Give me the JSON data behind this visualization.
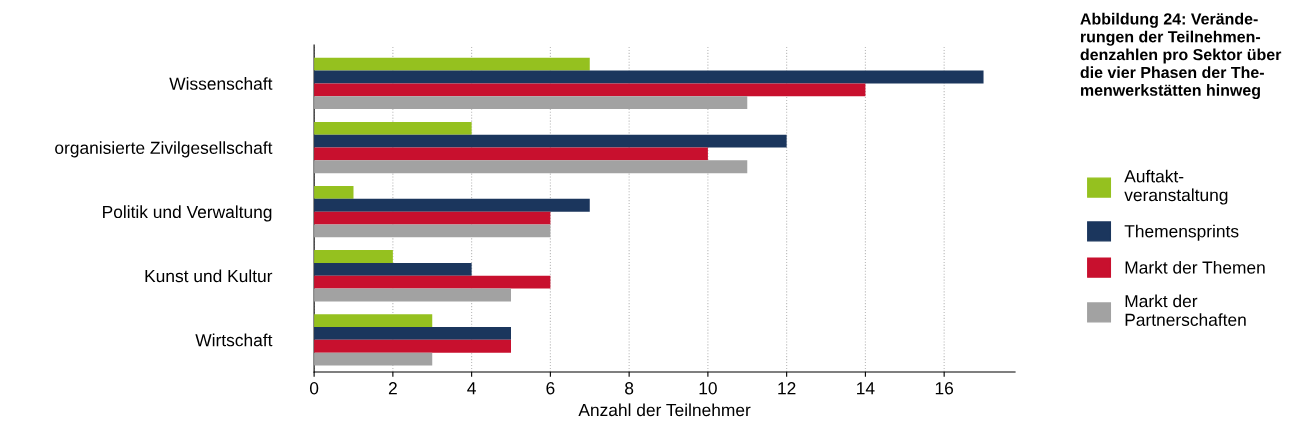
{
  "chart_data": {
    "type": "bar",
    "orientation": "horizontal",
    "title": "Abbildung 24: Verände-\nrungen der Teilnehmen-\ndenzahlen pro Sektor über\ndie vier Phasen der The-\nmenwerkstätten hinweg",
    "xlabel": "Anzahl der Teilnehmer",
    "categories": [
      "Wissenschaft",
      "organisierte Zivilgesellschaft",
      "Politik und Verwaltung",
      "Kunst und Kultur",
      "Wirtschaft"
    ],
    "series": [
      {
        "name": "Auftakt-\nveranstaltung",
        "color": "#95c11f",
        "values": [
          7,
          4,
          1,
          2,
          3
        ]
      },
      {
        "name": "Themensprints",
        "color": "#1b365d",
        "values": [
          17,
          12,
          7,
          4,
          5
        ]
      },
      {
        "name": "Markt der Themen",
        "color": "#c8102e",
        "values": [
          14,
          10,
          6,
          6,
          5
        ]
      },
      {
        "name": "Markt der\nPartnerschaften",
        "color": "#a2a2a2",
        "values": [
          11,
          11,
          6,
          5,
          3
        ]
      }
    ],
    "xlim": [
      0,
      17.8
    ],
    "xticks": [
      0,
      2,
      4,
      6,
      8,
      10,
      12,
      14,
      16
    ],
    "grid": "x",
    "legend": "right"
  }
}
